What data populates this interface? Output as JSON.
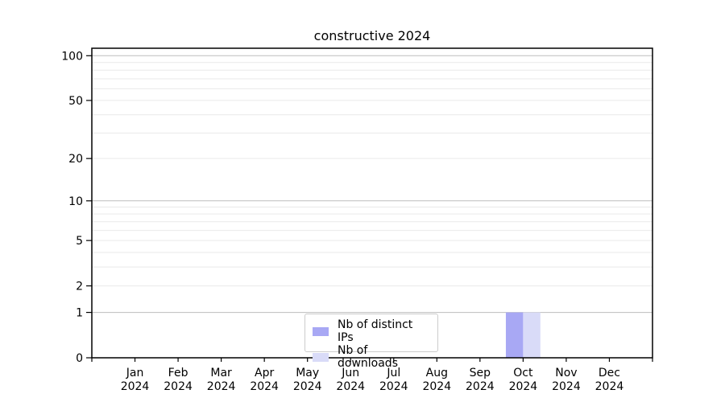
{
  "chart_data": {
    "type": "bar",
    "title": "constructive 2024",
    "year": "2024",
    "categories": [
      "Jan",
      "Feb",
      "Mar",
      "Apr",
      "May",
      "Jun",
      "Jul",
      "Aug",
      "Sep",
      "Oct",
      "Nov",
      "Dec"
    ],
    "series": [
      {
        "name": "Nb of distinct IPs",
        "color": "#a8a8f4",
        "values": [
          0,
          0,
          0,
          0,
          0,
          0,
          0,
          0,
          0,
          1,
          0,
          0
        ]
      },
      {
        "name": "Nb of downloads",
        "color": "#d9dbf8",
        "values": [
          0,
          0,
          0,
          0,
          0,
          0,
          0,
          0,
          0,
          1,
          0,
          0
        ]
      }
    ],
    "yscale": "log1p",
    "ylim": [
      0,
      113
    ],
    "y_tick_values": [
      0,
      1,
      2,
      5,
      10,
      20,
      50,
      100
    ],
    "y_gridlines_major": [
      1,
      10,
      100
    ],
    "y_gridlines_minor": [
      2,
      3,
      4,
      5,
      6,
      7,
      8,
      9,
      20,
      30,
      40,
      50,
      60,
      70,
      80,
      90
    ],
    "legend_position": "lower center",
    "grid": true,
    "colors": {
      "grid_major": "#bdbdbd",
      "grid_minor": "#e9e9e9",
      "axis": "#000000",
      "text": "#000000",
      "background": "#ffffff"
    }
  }
}
